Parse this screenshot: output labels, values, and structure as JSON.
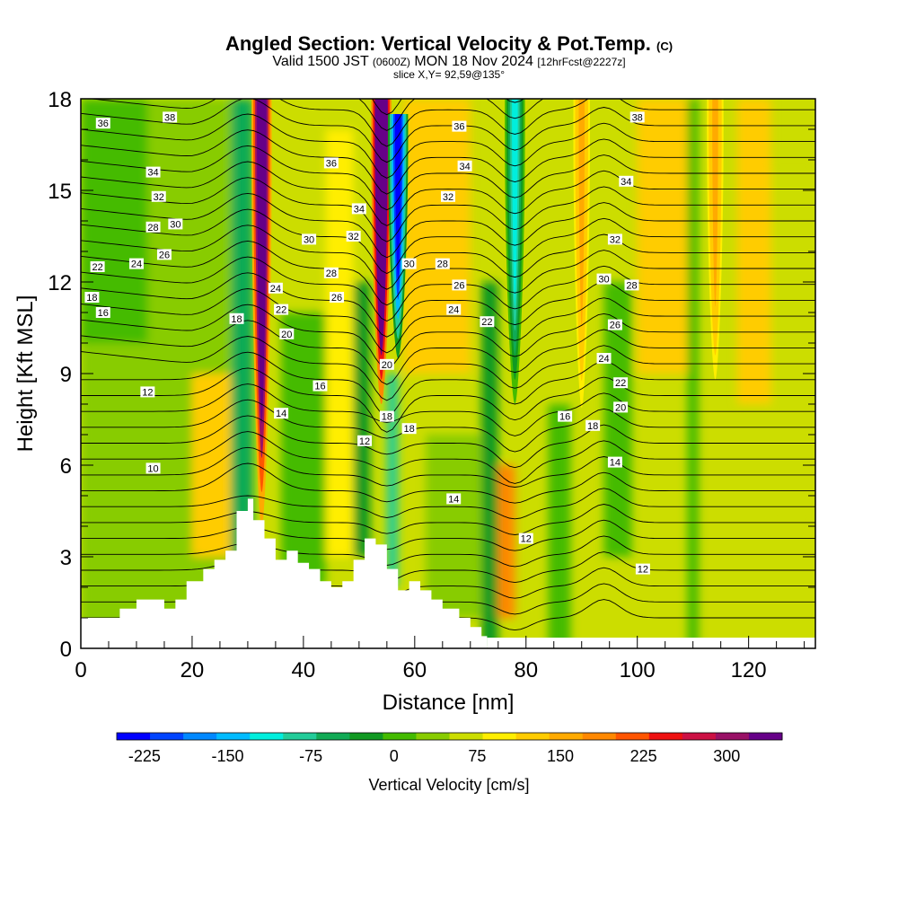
{
  "titles": {
    "main": "Angled Section: Vertical Velocity & Pot.Temp.",
    "copyright": "(C)",
    "valid_prefix": "Valid 1500 JST",
    "valid_utc": "(0600Z)",
    "valid_suffix": "MON 18 Nov 2024",
    "valid_fcst": "[12hrFcst@2227z]",
    "slice": "slice X,Y= 92,59@135°"
  },
  "chart_data": {
    "type": "heatmap",
    "xlabel": "Distance [nm]",
    "ylabel": "Height [Kft MSL]",
    "xlim": [
      0,
      132
    ],
    "ylim": [
      0,
      18
    ],
    "x_ticks": [
      0,
      20,
      40,
      60,
      80,
      100,
      120
    ],
    "y_ticks": [
      0,
      3,
      6,
      9,
      12,
      15,
      18
    ],
    "colorbar": {
      "label": "Vertical Velocity [cm/s]",
      "min": -250,
      "max": 350,
      "step": 25,
      "tick_values": [
        -225,
        -150,
        -75,
        0,
        75,
        150,
        225,
        300
      ],
      "colors": [
        "#0000ff",
        "#0044ff",
        "#0088ff",
        "#00bbff",
        "#00eedd",
        "#22cc99",
        "#11aa55",
        "#119922",
        "#44bb00",
        "#88cc00",
        "#ccdd00",
        "#ffee00",
        "#ffcc00",
        "#ffaa00",
        "#ff8800",
        "#ff5500",
        "#ee1111",
        "#cc1144",
        "#991166",
        "#660088"
      ]
    },
    "terrain_kft": [
      [
        0,
        1.0
      ],
      [
        5,
        1.0
      ],
      [
        7,
        1.3
      ],
      [
        10,
        1.6
      ],
      [
        14,
        1.6
      ],
      [
        15,
        1.3
      ],
      [
        17,
        1.6
      ],
      [
        19,
        2.2
      ],
      [
        22,
        2.6
      ],
      [
        24,
        2.9
      ],
      [
        26,
        3.2
      ],
      [
        28,
        4.5
      ],
      [
        30,
        4.9
      ],
      [
        31,
        4.2
      ],
      [
        33,
        3.6
      ],
      [
        35,
        2.9
      ],
      [
        37,
        3.2
      ],
      [
        39,
        2.8
      ],
      [
        41,
        2.6
      ],
      [
        43,
        2.2
      ],
      [
        45,
        2.0
      ],
      [
        47,
        2.2
      ],
      [
        49,
        2.9
      ],
      [
        51,
        3.6
      ],
      [
        53,
        3.4
      ],
      [
        55,
        2.6
      ],
      [
        57,
        1.9
      ],
      [
        59,
        2.2
      ],
      [
        61,
        1.9
      ],
      [
        63,
        1.6
      ],
      [
        65,
        1.3
      ],
      [
        68,
        1.0
      ],
      [
        70,
        0.7
      ],
      [
        72,
        0.4
      ],
      [
        73,
        0
      ],
      [
        132,
        0
      ]
    ],
    "updrafts": [
      {
        "x": 32.5,
        "bottom": 4.0,
        "top": 18.0,
        "peak": 300
      },
      {
        "x": 54.0,
        "bottom": 8.0,
        "top": 18.0,
        "peak": 350
      },
      {
        "x": 90.0,
        "bottom": 7.0,
        "top": 18.0,
        "peak": 80
      },
      {
        "x": 114.0,
        "bottom": 8.0,
        "top": 18.0,
        "peak": 85
      }
    ],
    "downdrafts": [
      {
        "x": 57.0,
        "bottom": 9.5,
        "top": 17.5,
        "peak": -250
      },
      {
        "x": 78.0,
        "bottom": 8.0,
        "top": 18.0,
        "peak": -130
      }
    ],
    "theta_labels": [
      {
        "x": 4,
        "y": 17.2,
        "t": "36"
      },
      {
        "x": 16,
        "y": 17.4,
        "t": "38"
      },
      {
        "x": 13,
        "y": 15.6,
        "t": "34"
      },
      {
        "x": 14,
        "y": 14.8,
        "t": "32"
      },
      {
        "x": 13,
        "y": 13.8,
        "t": "28"
      },
      {
        "x": 17,
        "y": 13.9,
        "t": "30"
      },
      {
        "x": 3,
        "y": 12.5,
        "t": "22"
      },
      {
        "x": 10,
        "y": 12.6,
        "t": "24"
      },
      {
        "x": 15,
        "y": 12.9,
        "t": "26"
      },
      {
        "x": 2,
        "y": 11.5,
        "t": "18"
      },
      {
        "x": 4,
        "y": 11.0,
        "t": "16"
      },
      {
        "x": 28,
        "y": 10.8,
        "t": "18"
      },
      {
        "x": 35,
        "y": 11.8,
        "t": "24"
      },
      {
        "x": 36,
        "y": 11.1,
        "t": "22"
      },
      {
        "x": 37,
        "y": 10.3,
        "t": "20"
      },
      {
        "x": 41,
        "y": 13.4,
        "t": "30"
      },
      {
        "x": 45,
        "y": 15.9,
        "t": "36"
      },
      {
        "x": 50,
        "y": 14.4,
        "t": "34"
      },
      {
        "x": 49,
        "y": 13.5,
        "t": "32"
      },
      {
        "x": 45,
        "y": 12.3,
        "t": "28"
      },
      {
        "x": 46,
        "y": 11.5,
        "t": "26"
      },
      {
        "x": 43,
        "y": 8.6,
        "t": "16"
      },
      {
        "x": 36,
        "y": 7.7,
        "t": "14"
      },
      {
        "x": 12,
        "y": 8.4,
        "t": "12"
      },
      {
        "x": 13,
        "y": 5.9,
        "t": "10"
      },
      {
        "x": 51,
        "y": 6.8,
        "t": "12"
      },
      {
        "x": 55,
        "y": 9.3,
        "t": "20"
      },
      {
        "x": 55,
        "y": 7.6,
        "t": "18"
      },
      {
        "x": 59,
        "y": 12.6,
        "t": "30"
      },
      {
        "x": 59,
        "y": 7.2,
        "t": "18"
      },
      {
        "x": 65,
        "y": 12.6,
        "t": "28"
      },
      {
        "x": 68,
        "y": 11.9,
        "t": "26"
      },
      {
        "x": 67,
        "y": 11.1,
        "t": "24"
      },
      {
        "x": 73,
        "y": 10.7,
        "t": "22"
      },
      {
        "x": 68,
        "y": 17.1,
        "t": "36"
      },
      {
        "x": 69,
        "y": 15.8,
        "t": "34"
      },
      {
        "x": 66,
        "y": 14.8,
        "t": "32"
      },
      {
        "x": 67,
        "y": 4.9,
        "t": "14"
      },
      {
        "x": 80,
        "y": 3.6,
        "t": "12"
      },
      {
        "x": 87,
        "y": 7.6,
        "t": "16"
      },
      {
        "x": 92,
        "y": 7.3,
        "t": "18"
      },
      {
        "x": 94,
        "y": 9.5,
        "t": "24"
      },
      {
        "x": 97,
        "y": 8.7,
        "t": "22"
      },
      {
        "x": 97,
        "y": 7.9,
        "t": "20"
      },
      {
        "x": 96,
        "y": 6.1,
        "t": "14"
      },
      {
        "x": 96,
        "y": 10.6,
        "t": "26"
      },
      {
        "x": 94,
        "y": 12.1,
        "t": "30"
      },
      {
        "x": 99,
        "y": 11.9,
        "t": "28"
      },
      {
        "x": 96,
        "y": 13.4,
        "t": "32"
      },
      {
        "x": 98,
        "y": 15.3,
        "t": "34"
      },
      {
        "x": 100,
        "y": 17.4,
        "t": "38"
      },
      {
        "x": 101,
        "y": 2.6,
        "t": "12"
      }
    ]
  }
}
